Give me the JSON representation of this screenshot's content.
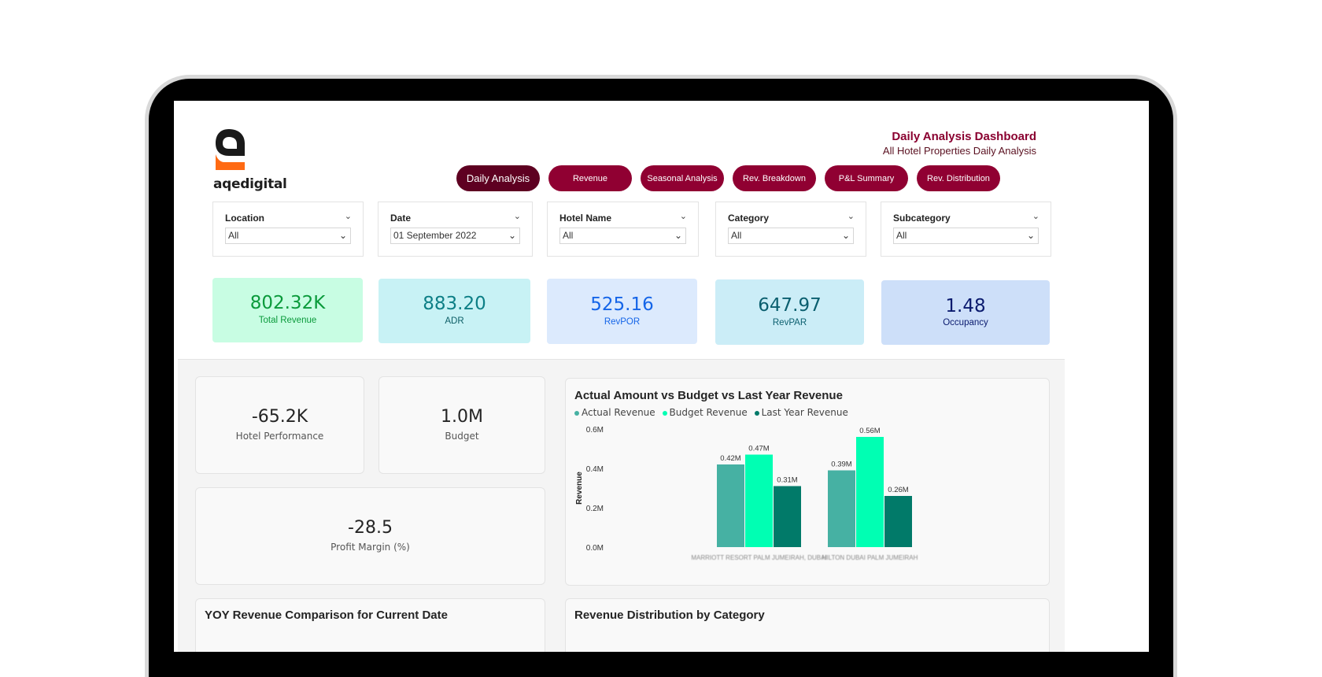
{
  "header": {
    "logo_text": "aqedigital",
    "title": "Daily Analysis Dashboard",
    "subtitle": "All Hotel Properties Daily Analysis"
  },
  "tabs": [
    {
      "label": "Daily Analysis",
      "active": true
    },
    {
      "label": "Revenue"
    },
    {
      "label": "Seasonal Analysis"
    },
    {
      "label": "Rev. Breakdown"
    },
    {
      "label": "P&L Summary"
    },
    {
      "label": "Rev. Distribution"
    }
  ],
  "filters": [
    {
      "label": "Location",
      "value": "All"
    },
    {
      "label": "Date",
      "value": "01 September 2022"
    },
    {
      "label": "Hotel Name",
      "value": "All"
    },
    {
      "label": "Category",
      "value": "All"
    },
    {
      "label": "Subcategory",
      "value": "All"
    }
  ],
  "kpis": [
    {
      "value": "802.32K",
      "label": "Total Revenue"
    },
    {
      "value": "883.20",
      "label": "ADR"
    },
    {
      "value": "525.16",
      "label": "RevPOR"
    },
    {
      "value": "647.97",
      "label": "RevPAR"
    },
    {
      "value": "1.48",
      "label": "Occupancy"
    }
  ],
  "cards": {
    "hotel_performance": {
      "value": "-65.2K",
      "label": "Hotel Performance"
    },
    "budget": {
      "value": "1.0M",
      "label": "Budget"
    },
    "profit_margin": {
      "value": "-28.5",
      "label": "Profit Margin (%)"
    }
  },
  "colors": {
    "accent": "#900032",
    "accent_active": "#5e0021",
    "actual": "#46b1a3",
    "budget": "#00ffb3",
    "last_year": "#017a69"
  },
  "chart_data": {
    "type": "bar",
    "title": "Actual Amount vs Budget vs Last Year Revenue",
    "ylabel": "Revenue",
    "ylim": [
      0,
      0.6
    ],
    "yticks": [
      "0.0M",
      "0.2M",
      "0.4M",
      "0.6M"
    ],
    "legend_position": "top-left",
    "categories": [
      "MARRIOTT RESORT PALM JUMEIRAH, DUBAI",
      "HILTON DUBAI PALM JUMEIRAH"
    ],
    "series": [
      {
        "name": "Actual Revenue",
        "values": [
          0.42,
          0.39
        ],
        "labels": [
          "0.42M",
          "0.39M"
        ]
      },
      {
        "name": "Budget Revenue",
        "values": [
          0.47,
          0.56
        ],
        "labels": [
          "0.47M",
          "0.56M"
        ]
      },
      {
        "name": "Last Year Revenue",
        "values": [
          0.31,
          0.26
        ],
        "labels": [
          "0.31M",
          "0.26M"
        ]
      }
    ]
  },
  "bottom": {
    "yoy_title": "YOY Revenue Comparison for Current Date",
    "dist_title": "Revenue Distribution by Category"
  }
}
